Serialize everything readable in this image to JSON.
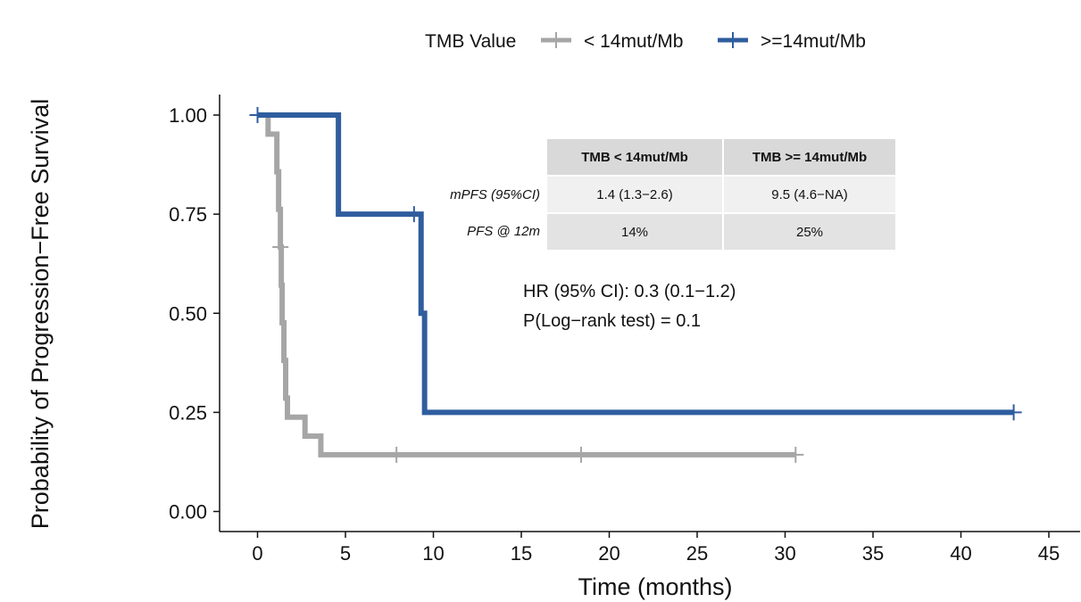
{
  "chart_data": {
    "type": "line",
    "subtype": "kaplan-meier",
    "xlabel": "Time (months)",
    "ylabel": "Probability of Progression−Free Survival",
    "xlim": [
      -2,
      46
    ],
    "ylim": [
      -0.04,
      1.05
    ],
    "x_ticks": [
      0,
      5,
      10,
      15,
      20,
      25,
      30,
      35,
      40,
      45
    ],
    "x_tick_labels": [
      "0",
      "5",
      "10",
      "15",
      "20",
      "25",
      "30",
      "35",
      "40",
      "45"
    ],
    "y_ticks": [
      0,
      0.25,
      0.5,
      0.75,
      1.0
    ],
    "y_tick_labels": [
      "0.00",
      "0.25",
      "0.50",
      "0.75",
      "1.00"
    ],
    "grid": false,
    "legend": {
      "position": "top",
      "title": "TMB Value",
      "entries": [
        "< 14mut/Mb",
        ">=14mut/Mb"
      ]
    },
    "series": [
      {
        "name": "< 14mut/Mb",
        "color": "#a6a6a6",
        "steps": [
          [
            0,
            1.0
          ],
          [
            0.6,
            0.952
          ],
          [
            1.1,
            0.857
          ],
          [
            1.2,
            0.762
          ],
          [
            1.3,
            0.667
          ],
          [
            1.35,
            0.571
          ],
          [
            1.4,
            0.476
          ],
          [
            1.5,
            0.381
          ],
          [
            1.6,
            0.286
          ],
          [
            1.7,
            0.238
          ],
          [
            2.7,
            0.19
          ],
          [
            3.6,
            0.143
          ],
          [
            30.6,
            0.143
          ]
        ],
        "censor_times": [
          1.3,
          7.9,
          18.4,
          30.6
        ]
      },
      {
        "name": ">=14mut/Mb",
        "color": "#2f5d9e",
        "steps": [
          [
            0,
            1.0
          ],
          [
            4.6,
            0.75
          ],
          [
            9.3,
            0.5
          ],
          [
            9.5,
            0.25
          ],
          [
            43,
            0.25
          ]
        ],
        "censor_times": [
          0,
          8.9,
          43
        ]
      }
    ],
    "annotations": [
      "HR (95% CI): 0.3 (0.1−1.2)",
      "P(Log−rank test) = 0.1"
    ],
    "table": {
      "columns": [
        "TMB < 14mut/Mb",
        "TMB >= 14mut/Mb"
      ],
      "rows": [
        {
          "label": "mPFS (95%CI)",
          "values": [
            "1.4 (1.3−2.6)",
            "9.5 (4.6−NA)"
          ]
        },
        {
          "label": "PFS @ 12m",
          "values": [
            "14%",
            "25%"
          ]
        }
      ]
    }
  }
}
